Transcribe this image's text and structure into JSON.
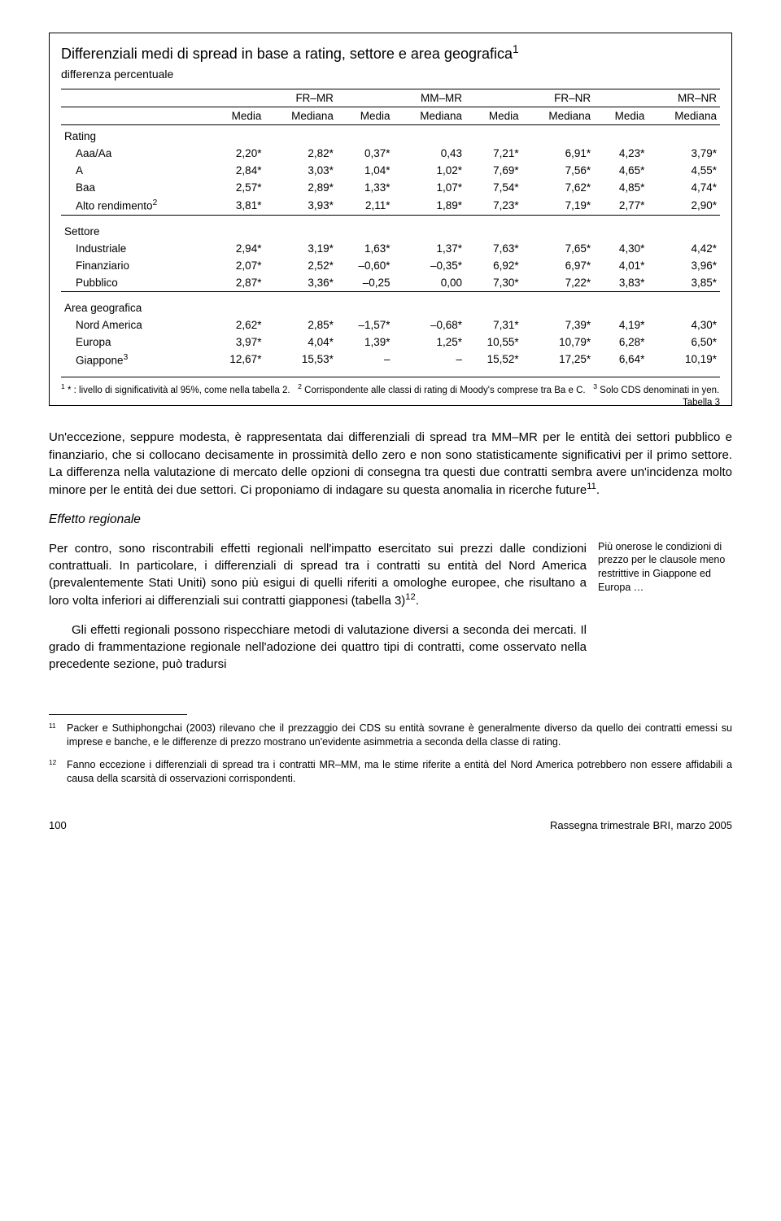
{
  "table": {
    "title": "Differenziali medi di spread in base a rating, settore e area geografica",
    "title_sup": "1",
    "subtitle": "differenza percentuale",
    "group_headers": [
      "FR–MR",
      "MM–MR",
      "FR–NR",
      "MR–NR"
    ],
    "sub_headers": [
      "Media",
      "Mediana",
      "Media",
      "Mediana",
      "Media",
      "Mediana",
      "Media",
      "Mediana"
    ],
    "sections": [
      {
        "label": "Rating",
        "rows": [
          {
            "label": "Aaa/Aa",
            "vals": [
              "2,20*",
              "2,82*",
              "0,37*",
              "0,43",
              "7,21*",
              "6,91*",
              "4,23*",
              "3,79*"
            ]
          },
          {
            "label": "A",
            "vals": [
              "2,84*",
              "3,03*",
              "1,04*",
              "1,02*",
              "7,69*",
              "7,56*",
              "4,65*",
              "4,55*"
            ]
          },
          {
            "label": "Baa",
            "vals": [
              "2,57*",
              "2,89*",
              "1,33*",
              "1,07*",
              "7,54*",
              "7,62*",
              "4,85*",
              "4,74*"
            ]
          },
          {
            "label_html": "Alto rendimento<sup>2</sup>",
            "vals": [
              "3,81*",
              "3,93*",
              "2,11*",
              "1,89*",
              "7,23*",
              "7,19*",
              "2,77*",
              "2,90*"
            ]
          }
        ]
      },
      {
        "label": "Settore",
        "rows": [
          {
            "label": "Industriale",
            "vals": [
              "2,94*",
              "3,19*",
              "1,63*",
              "1,37*",
              "7,63*",
              "7,65*",
              "4,30*",
              "4,42*"
            ]
          },
          {
            "label": "Finanziario",
            "vals": [
              "2,07*",
              "2,52*",
              "–0,60*",
              "–0,35*",
              "6,92*",
              "6,97*",
              "4,01*",
              "3,96*"
            ]
          },
          {
            "label": "Pubblico",
            "vals": [
              "2,87*",
              "3,36*",
              "–0,25",
              "0,00",
              "7,30*",
              "7,22*",
              "3,83*",
              "3,85*"
            ]
          }
        ]
      },
      {
        "label": "Area geografica",
        "rows": [
          {
            "label": "Nord America",
            "vals": [
              "2,62*",
              "2,85*",
              "–1,57*",
              "–0,68*",
              "7,31*",
              "7,39*",
              "4,19*",
              "4,30*"
            ]
          },
          {
            "label": "Europa",
            "vals": [
              "3,97*",
              "4,04*",
              "1,39*",
              "1,25*",
              "10,55*",
              "10,79*",
              "6,28*",
              "6,50*"
            ]
          },
          {
            "label_html": "Giappone<sup>3</sup>",
            "vals": [
              "12,67*",
              "15,53*",
              "–",
              "–",
              "15,52*",
              "17,25*",
              "6,64*",
              "10,19*"
            ]
          }
        ]
      }
    ],
    "footnote_html": "<sup>1</sup> * : livello di significatività al 95%, come nella tabella 2. &nbsp; <sup>2</sup> Corrispondente alle classi di rating di Moody's comprese tra Ba e C. &nbsp; <sup>3</sup> Solo CDS denominati in yen.",
    "table_ref": "Tabella 3"
  },
  "para1": "Un'eccezione, seppure modesta, è rappresentata dai differenziali di spread tra MM–MR per le entità dei settori pubblico e finanziario, che si collocano decisamente in prossimità dello zero e non sono statisticamente significativi per il primo settore. La differenza nella valutazione di mercato delle opzioni di consegna tra questi due contratti sembra avere un'incidenza molto minore per le entità dei due settori. Ci proponiamo di indagare su questa anomalia in ricerche future",
  "para1_sup": "11",
  "subhead": "Effetto regionale",
  "para2a": "Per contro, sono riscontrabili effetti regionali nell'impatto esercitato sui prezzi dalle condizioni contrattuali. In particolare, i differenziali di spread tra i contratti su entità del Nord America (prevalentemente Stati Uniti) sono più esigui di quelli riferiti a omologhe europee, che risultano a loro volta inferiori ai differenziali sui contratti giapponesi (tabella 3)",
  "para2a_sup": "12",
  "para2b": "Gli effetti regionali possono rispecchiare metodi di valutazione diversi a seconda dei mercati. Il grado di frammentazione regionale nell'adozione dei quattro tipi di contratti, come osservato nella precedente sezione, può tradursi",
  "margin_note": "Più onerose le condizioni di prezzo per le clausole meno restrittive in Giappone ed Europa …",
  "footnotes": [
    {
      "num": "11",
      "text": "Packer e Suthiphongchai (2003) rilevano che il prezzaggio dei CDS su entità sovrane è generalmente diverso da quello dei contratti emessi su imprese e banche, e le differenze di prezzo mostrano un'evidente asimmetria a seconda della classe di rating."
    },
    {
      "num": "12",
      "text": "Fanno eccezione i differenziali di spread tra i contratti MR–MM, ma le stime riferite a entità del Nord America potrebbero non essere affidabili a causa della scarsità di osservazioni corrispondenti."
    }
  ],
  "footer": {
    "page": "100",
    "source": "Rassegna trimestrale BRI, marzo 2005"
  }
}
